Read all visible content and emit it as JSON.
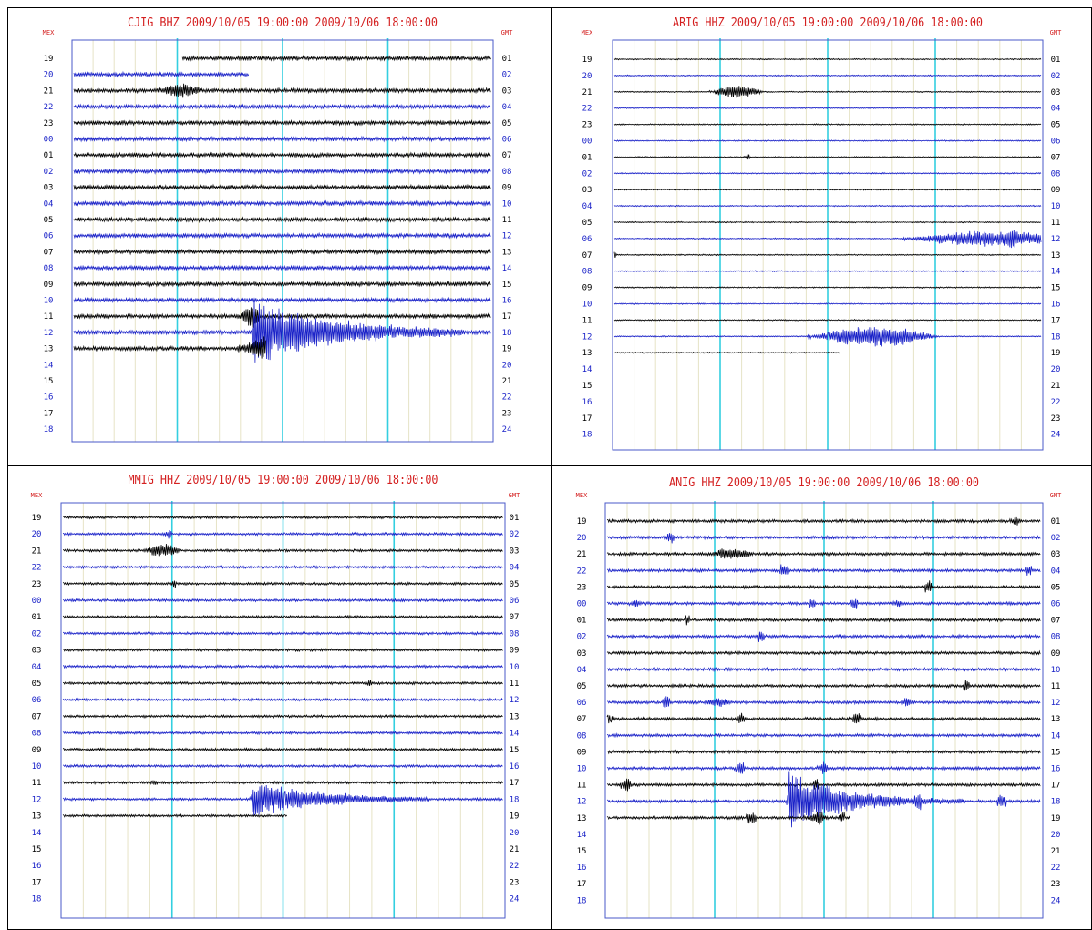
{
  "colors": {
    "title": "#d42020",
    "trace_dark": "#000000",
    "trace_blue": "#1a22c8",
    "frame": "#4a58c8",
    "hour_line": "#33cfe0",
    "minor_grid": "#e6e3c6",
    "left_label_blue": "#1a22c8",
    "left_label_dark": "#000000",
    "right_label": "#000000"
  },
  "chart_data": [
    {
      "type": "line",
      "title": "CJIG BHZ 2009/10/05 19:00:00 2009/10/06 18:00:00",
      "left_axis_title": "MEX",
      "right_axis_title": "GMT",
      "left_labels": [
        "19",
        "20",
        "21",
        "22",
        "23",
        "00",
        "01",
        "02",
        "03",
        "04",
        "05",
        "06",
        "07",
        "08",
        "09",
        "10",
        "11",
        "12",
        "13",
        "14",
        "15",
        "16",
        "17",
        "18"
      ],
      "right_labels": [
        "01",
        "02",
        "03",
        "04",
        "05",
        "06",
        "07",
        "08",
        "09",
        "10",
        "11",
        "12",
        "13",
        "14",
        "15",
        "16",
        "17",
        "18",
        "19",
        "20",
        "21",
        "22",
        "23",
        "24"
      ],
      "minutes_per_row": 60,
      "rows_recorded": 18,
      "gaps": [
        {
          "row": 0,
          "start": 0.26,
          "end": 1.0
        },
        {
          "row": 1,
          "start": 0.0,
          "end": 0.42
        }
      ],
      "last_row_end": 0.46,
      "noise": 2,
      "events": [
        {
          "row": 2,
          "pos": 0.21,
          "amp": 7,
          "width": 0.1
        },
        {
          "row": 16,
          "pos": 0.4,
          "amp": 9,
          "width": 0.04
        },
        {
          "row": 16,
          "pos": 0.42,
          "amp": 8,
          "width": 0.03
        },
        {
          "row": 17,
          "pos": 0.43,
          "amp": 40,
          "width": 0.5,
          "decay": 0.18
        },
        {
          "row": 18,
          "pos": 0.4,
          "amp": 16,
          "width": 0.18
        }
      ]
    },
    {
      "type": "line",
      "title": "ARIG HHZ 2009/10/05 19:00:00 2009/10/06 18:00:00",
      "left_axis_title": "MEX",
      "right_axis_title": "GMT",
      "left_labels": [
        "19",
        "20",
        "21",
        "22",
        "23",
        "00",
        "01",
        "02",
        "03",
        "04",
        "05",
        "06",
        "07",
        "08",
        "09",
        "10",
        "11",
        "12",
        "13",
        "14",
        "15",
        "16",
        "17",
        "18"
      ],
      "right_labels": [
        "01",
        "02",
        "03",
        "04",
        "05",
        "06",
        "07",
        "08",
        "09",
        "10",
        "11",
        "12",
        "13",
        "14",
        "15",
        "16",
        "17",
        "18",
        "19",
        "20",
        "21",
        "22",
        "23",
        "24"
      ],
      "minutes_per_row": 60,
      "rows_recorded": 18,
      "gaps": [],
      "last_row_end": 0.53,
      "noise": 0.6,
      "events": [
        {
          "row": 2,
          "pos": 0.23,
          "amp": 8,
          "width": 0.12
        },
        {
          "row": 6,
          "pos": 0.31,
          "amp": 5,
          "width": 0.01
        },
        {
          "row": 11,
          "pos": 0.68,
          "amp": 9,
          "width": 0.4
        },
        {
          "row": 11,
          "pos": 0.92,
          "amp": 7,
          "width": 0.02
        },
        {
          "row": 12,
          "pos": 0.0,
          "amp": 4,
          "width": 0.01
        },
        {
          "row": 17,
          "pos": 0.46,
          "amp": 12,
          "width": 0.3
        }
      ]
    },
    {
      "type": "line",
      "title": "MMIG HHZ 2009/10/05 19:00:00 2009/10/06 18:00:00",
      "left_axis_title": "MEX",
      "right_axis_title": "GMT",
      "left_labels": [
        "19",
        "20",
        "21",
        "22",
        "23",
        "00",
        "01",
        "02",
        "03",
        "04",
        "05",
        "06",
        "07",
        "08",
        "09",
        "10",
        "11",
        "12",
        "13",
        "14",
        "15",
        "16",
        "17",
        "18"
      ],
      "right_labels": [
        "01",
        "02",
        "03",
        "04",
        "05",
        "06",
        "07",
        "08",
        "09",
        "10",
        "11",
        "12",
        "13",
        "14",
        "15",
        "16",
        "17",
        "18",
        "19",
        "20",
        "21",
        "22",
        "23",
        "24"
      ],
      "minutes_per_row": 60,
      "rows_recorded": 18,
      "gaps": [],
      "last_row_end": 0.51,
      "noise": 1.2,
      "events": [
        {
          "row": 1,
          "pos": 0.24,
          "amp": 6,
          "width": 0.01
        },
        {
          "row": 2,
          "pos": 0.19,
          "amp": 8,
          "width": 0.08
        },
        {
          "row": 4,
          "pos": 0.25,
          "amp": 5,
          "width": 0.01
        },
        {
          "row": 10,
          "pos": 0.69,
          "amp": 5,
          "width": 0.01
        },
        {
          "row": 16,
          "pos": 0.2,
          "amp": 3,
          "width": 0.02
        },
        {
          "row": 17,
          "pos": 0.43,
          "amp": 22,
          "width": 0.4,
          "decay": 0.15
        }
      ]
    },
    {
      "type": "line",
      "title": "ANIG HHZ 2009/10/05 19:00:00 2009/10/06 18:00:00",
      "left_axis_title": "MEX",
      "right_axis_title": "GMT",
      "left_labels": [
        "19",
        "20",
        "21",
        "22",
        "23",
        "00",
        "01",
        "02",
        "03",
        "04",
        "05",
        "06",
        "07",
        "08",
        "09",
        "10",
        "11",
        "12",
        "13",
        "14",
        "15",
        "16",
        "17",
        "18"
      ],
      "right_labels": [
        "01",
        "02",
        "03",
        "04",
        "05",
        "06",
        "07",
        "08",
        "09",
        "10",
        "11",
        "12",
        "13",
        "14",
        "15",
        "16",
        "17",
        "18",
        "19",
        "20",
        "21",
        "22",
        "23",
        "24"
      ],
      "minutes_per_row": 60,
      "rows_recorded": 18,
      "gaps": [],
      "last_row_end": 0.56,
      "noise": 1.4,
      "burst_rate": 0.08,
      "events": [
        {
          "row": 0,
          "pos": 0.93,
          "amp": 5,
          "width": 0.02
        },
        {
          "row": 1,
          "pos": 0.14,
          "amp": 6,
          "width": 0.02
        },
        {
          "row": 2,
          "pos": 0.24,
          "amp": 6,
          "width": 0.1
        },
        {
          "row": 5,
          "pos": 0.06,
          "amp": 4,
          "width": 0.02
        },
        {
          "row": 5,
          "pos": 0.66,
          "amp": 4,
          "width": 0.02
        },
        {
          "row": 11,
          "pos": 0.23,
          "amp": 5,
          "width": 0.06
        },
        {
          "row": 11,
          "pos": 0.68,
          "amp": 6,
          "width": 0.02
        },
        {
          "row": 12,
          "pos": 0.0,
          "amp": 5,
          "width": 0.02
        },
        {
          "row": 12,
          "pos": 0.3,
          "amp": 6,
          "width": 0.02
        },
        {
          "row": 15,
          "pos": 0.3,
          "amp": 8,
          "width": 0.02
        },
        {
          "row": 15,
          "pos": 0.49,
          "amp": 8,
          "width": 0.02
        },
        {
          "row": 16,
          "pos": 0.04,
          "amp": 9,
          "width": 0.02
        },
        {
          "row": 17,
          "pos": 0.42,
          "amp": 38,
          "width": 0.4,
          "decay": 0.12
        },
        {
          "row": 18,
          "pos": 0.46,
          "amp": 4,
          "width": 0.05
        }
      ]
    }
  ]
}
